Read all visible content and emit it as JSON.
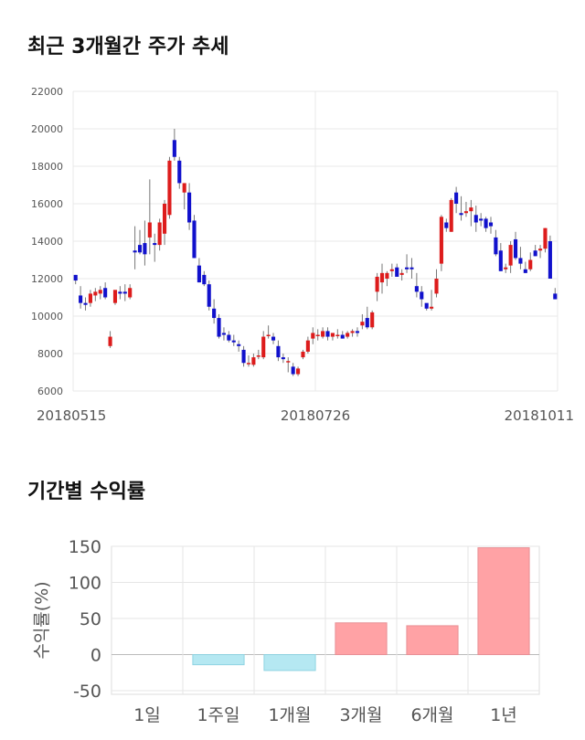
{
  "sections": {
    "price_title": "최근 3개월간 주가 추세",
    "return_title": "기간별 수익률"
  },
  "chart_data": [
    {
      "type": "candlestick",
      "title": "최근 3개월간 주가 추세",
      "ylim": [
        6000,
        22000
      ],
      "y_ticks": [
        "22000",
        "20000",
        "18000",
        "16000",
        "14000",
        "12000",
        "10000",
        "8000",
        "6000"
      ],
      "x_ticks": [
        "20180515",
        "20180726",
        "20181011"
      ],
      "grid": true,
      "colors": {
        "up": "#dd1c1c",
        "down": "#1111cc"
      },
      "candles": [
        [
          12200,
          12200,
          11700,
          11900
        ],
        [
          11100,
          11600,
          10400,
          10700
        ],
        [
          10700,
          11000,
          10300,
          10600
        ],
        [
          10700,
          11400,
          10500,
          11200
        ],
        [
          11100,
          11500,
          10800,
          11300
        ],
        [
          11200,
          11600,
          10900,
          11400
        ],
        [
          11500,
          11800,
          10900,
          11000
        ],
        [
          8400,
          9200,
          8300,
          8900
        ],
        [
          10700,
          11300,
          10600,
          11400
        ],
        [
          11300,
          11600,
          10900,
          11200
        ],
        [
          11300,
          11700,
          10800,
          11200
        ],
        [
          11000,
          11700,
          10900,
          11500
        ],
        [
          13500,
          14800,
          12500,
          13400
        ],
        [
          13800,
          14600,
          13300,
          13400
        ],
        [
          13900,
          15100,
          12700,
          13300
        ],
        [
          14200,
          17300,
          13300,
          15000
        ],
        [
          13900,
          14400,
          12900,
          13800
        ],
        [
          13800,
          15200,
          13500,
          15000
        ],
        [
          14400,
          16200,
          13800,
          16000
        ],
        [
          15400,
          18500,
          15200,
          18300
        ],
        [
          19400,
          20000,
          18300,
          18500
        ],
        [
          18300,
          18500,
          16800,
          17100
        ],
        [
          16600,
          17100,
          15700,
          17100
        ],
        [
          16600,
          17100,
          14600,
          15000
        ],
        [
          15100,
          15400,
          13100,
          13100
        ],
        [
          12700,
          13100,
          11800,
          11800
        ],
        [
          12200,
          12400,
          11600,
          11700
        ],
        [
          11700,
          11900,
          10300,
          10500
        ],
        [
          10400,
          10900,
          9600,
          9900
        ],
        [
          9900,
          10100,
          8800,
          8900
        ],
        [
          9100,
          9400,
          8700,
          9000
        ],
        [
          9000,
          9200,
          8600,
          8700
        ],
        [
          8700,
          9000,
          8400,
          8600
        ],
        [
          8500,
          8700,
          8100,
          8400
        ],
        [
          8200,
          8400,
          7300,
          7500
        ],
        [
          7500,
          7900,
          7300,
          7500
        ],
        [
          7400,
          8000,
          7300,
          7800
        ],
        [
          7900,
          8200,
          7700,
          7900
        ],
        [
          7800,
          9200,
          7700,
          8900
        ],
        [
          9000,
          9500,
          8800,
          9000
        ],
        [
          8900,
          9100,
          8500,
          8700
        ],
        [
          8400,
          8700,
          7600,
          7800
        ],
        [
          7800,
          8000,
          7500,
          7700
        ],
        [
          7600,
          7800,
          7000,
          7600
        ],
        [
          7300,
          7500,
          6800,
          6900
        ],
        [
          6900,
          7300,
          6800,
          7200
        ],
        [
          7800,
          8200,
          7700,
          8100
        ],
        [
          8100,
          8900,
          8000,
          8700
        ],
        [
          8800,
          9400,
          8500,
          9100
        ],
        [
          9000,
          9300,
          8700,
          9000
        ],
        [
          8900,
          9400,
          8800,
          9200
        ],
        [
          9200,
          9400,
          8700,
          8900
        ],
        [
          8900,
          9100,
          8700,
          9100
        ],
        [
          9000,
          9300,
          8800,
          9000
        ],
        [
          9000,
          9200,
          8800,
          8800
        ],
        [
          8900,
          9200,
          8800,
          9100
        ],
        [
          9100,
          9300,
          8900,
          9200
        ],
        [
          9200,
          9400,
          8900,
          9100
        ],
        [
          9500,
          10100,
          9300,
          9700
        ],
        [
          9900,
          10500,
          9300,
          9400
        ],
        [
          9400,
          10300,
          9300,
          10200
        ],
        [
          11300,
          12300,
          10800,
          12100
        ],
        [
          11800,
          12800,
          11200,
          12300
        ],
        [
          12000,
          12400,
          11600,
          12300
        ],
        [
          12400,
          12800,
          12100,
          12500
        ],
        [
          12600,
          12800,
          12100,
          12100
        ],
        [
          12200,
          12500,
          11900,
          12300
        ],
        [
          12600,
          13300,
          12300,
          12500
        ],
        [
          12600,
          13100,
          12000,
          12500
        ],
        [
          11600,
          12300,
          11000,
          11300
        ],
        [
          11300,
          11600,
          10500,
          10900
        ],
        [
          10700,
          10600,
          10300,
          10400
        ],
        [
          10400,
          11400,
          10300,
          10500
        ],
        [
          11200,
          12500,
          11000,
          12000
        ],
        [
          12800,
          15400,
          12400,
          15300
        ],
        [
          15000,
          15200,
          14500,
          14700
        ],
        [
          14500,
          16300,
          14500,
          16200
        ],
        [
          16600,
          16900,
          15500,
          16000
        ],
        [
          15500,
          16400,
          15100,
          15400
        ],
        [
          15500,
          16100,
          15300,
          15600
        ],
        [
          15600,
          16200,
          14800,
          15800
        ],
        [
          15400,
          15900,
          14500,
          15000
        ],
        [
          15200,
          15500,
          14800,
          15100
        ],
        [
          15200,
          15300,
          14500,
          14700
        ],
        [
          15000,
          15300,
          14400,
          14800
        ],
        [
          14200,
          14600,
          13200,
          13300
        ],
        [
          13500,
          13900,
          12400,
          12400
        ],
        [
          12500,
          12800,
          12300,
          12600
        ],
        [
          12700,
          14000,
          12300,
          13800
        ],
        [
          14100,
          14500,
          13000,
          13100
        ],
        [
          13100,
          13700,
          12500,
          12800
        ],
        [
          12500,
          12900,
          12300,
          12300
        ],
        [
          12500,
          13400,
          12400,
          13000
        ],
        [
          13500,
          13800,
          13200,
          13200
        ],
        [
          13500,
          13800,
          13100,
          13600
        ],
        [
          13600,
          14700,
          13400,
          14700
        ],
        [
          14000,
          14300,
          12000,
          12000
        ],
        [
          11200,
          11500,
          10900,
          10900
        ]
      ]
    },
    {
      "type": "bar",
      "title": "기간별 수익률",
      "ylabel": "수익률(%)",
      "categories": [
        "1일",
        "1주일",
        "1개월",
        "3개월",
        "6개월",
        "1년"
      ],
      "values": [
        0,
        -14,
        -22,
        44,
        40,
        148
      ],
      "ylim": [
        -55,
        150
      ],
      "y_ticks": [
        "150",
        "100",
        "50",
        "0",
        "-50"
      ],
      "colors": {
        "positive": "#ffa2a5",
        "negative": "#b5e8f2",
        "grid": "#e6e6e6"
      },
      "grid": true
    }
  ]
}
